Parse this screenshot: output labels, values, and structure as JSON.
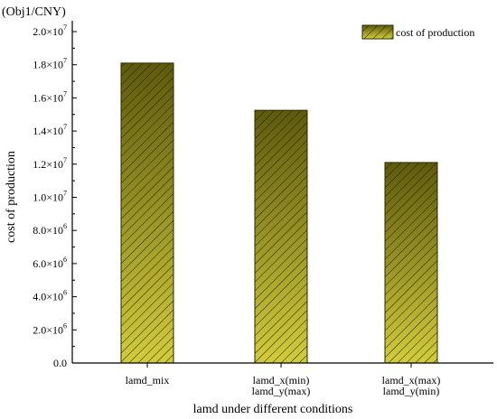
{
  "chart_data": {
    "type": "bar",
    "unit_label": "(Obj1/CNY)",
    "xlabel": "lamd under different conditions",
    "ylabel": "cost of production",
    "categories": [
      [
        "lamd_mix"
      ],
      [
        "lamd_x(min)",
        "lamd_y(max)"
      ],
      [
        "lamd_x(max)",
        "lamd_y(min)"
      ]
    ],
    "series": [
      {
        "name": "cost of production",
        "values": [
          18100000,
          15250000,
          12100000
        ]
      }
    ],
    "ylim": [
      0,
      20000000
    ],
    "yticks": [
      {
        "value": 0,
        "mantissa": "0.0",
        "exp": ""
      },
      {
        "value": 2000000,
        "mantissa": "2.0×10",
        "exp": "6"
      },
      {
        "value": 4000000,
        "mantissa": "4.0×10",
        "exp": "6"
      },
      {
        "value": 6000000,
        "mantissa": "6.0×10",
        "exp": "6"
      },
      {
        "value": 8000000,
        "mantissa": "8.0×10",
        "exp": "6"
      },
      {
        "value": 10000000,
        "mantissa": "1.0×10",
        "exp": "7"
      },
      {
        "value": 12000000,
        "mantissa": "1.2×10",
        "exp": "7"
      },
      {
        "value": 14000000,
        "mantissa": "1.4×10",
        "exp": "7"
      },
      {
        "value": 16000000,
        "mantissa": "1.6×10",
        "exp": "7"
      },
      {
        "value": 18000000,
        "mantissa": "1.8×10",
        "exp": "7"
      },
      {
        "value": 20000000,
        "mantissa": "2.0×10",
        "exp": "7"
      }
    ],
    "legend_position": "top-right",
    "grid": false,
    "colors": {
      "bar_top": "#5e5a0c",
      "bar_bottom": "#d2cc3c",
      "bar_border": "#2a2a00",
      "hatch": "#1e1e00",
      "axis": "#000000"
    }
  }
}
